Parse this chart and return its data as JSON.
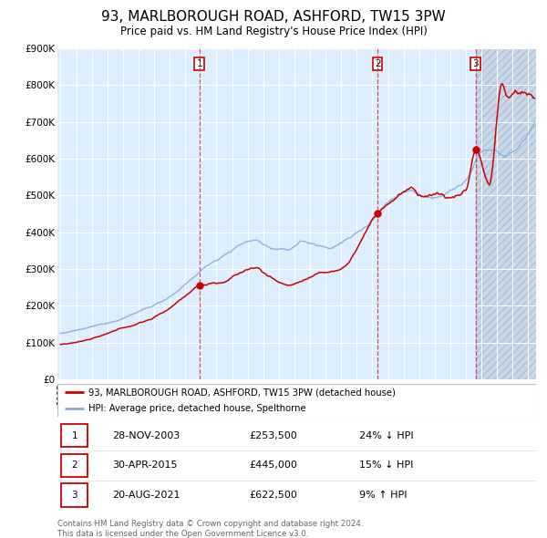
{
  "title": "93, MARLBOROUGH ROAD, ASHFORD, TW15 3PW",
  "subtitle": "Price paid vs. HM Land Registry's House Price Index (HPI)",
  "title_fontsize": 11,
  "subtitle_fontsize": 8.5,
  "ylim": [
    0,
    900000
  ],
  "yticks": [
    0,
    100000,
    200000,
    300000,
    400000,
    500000,
    600000,
    700000,
    800000,
    900000
  ],
  "ytick_labels": [
    "£0",
    "£100K",
    "£200K",
    "£300K",
    "£400K",
    "£500K",
    "£600K",
    "£700K",
    "£800K",
    "£900K"
  ],
  "xlim_start": 1994.8,
  "xlim_end": 2025.5,
  "plot_bg_color": "#ddeeff",
  "hatch_bg_color": "#c8d8ea",
  "grid_color": "#ffffff",
  "red_line_color": "#cc0000",
  "blue_line_color": "#88aadd",
  "sale_marker_color": "#cc0000",
  "transactions": [
    {
      "num": 1,
      "date": "28-NOV-2003",
      "price": 253500,
      "pct": "24%",
      "dir": "↓",
      "x": 2003.91
    },
    {
      "num": 2,
      "date": "30-APR-2015",
      "price": 445000,
      "pct": "15%",
      "dir": "↓",
      "x": 2015.33
    },
    {
      "num": 3,
      "date": "20-AUG-2021",
      "price": 622500,
      "pct": "9%",
      "dir": "↑",
      "x": 2021.63
    }
  ],
  "legend_label_red": "93, MARLBOROUGH ROAD, ASHFORD, TW15 3PW (detached house)",
  "legend_label_blue": "HPI: Average price, detached house, Spelthorne",
  "footer_line1": "Contains HM Land Registry data © Crown copyright and database right 2024.",
  "footer_line2": "This data is licensed under the Open Government Licence v3.0."
}
